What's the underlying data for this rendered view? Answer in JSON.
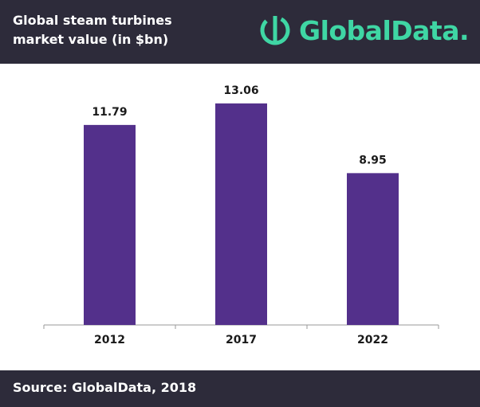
{
  "chart_data": {
    "type": "bar",
    "title": "Global steam turbines market value (in $bn)",
    "logo": "GlobalData.",
    "source": "Source: GlobalData, 2018",
    "categories": [
      "2012",
      "2017",
      "2022"
    ],
    "values": [
      11.79,
      13.06,
      8.95
    ],
    "color": "#53308b"
  }
}
